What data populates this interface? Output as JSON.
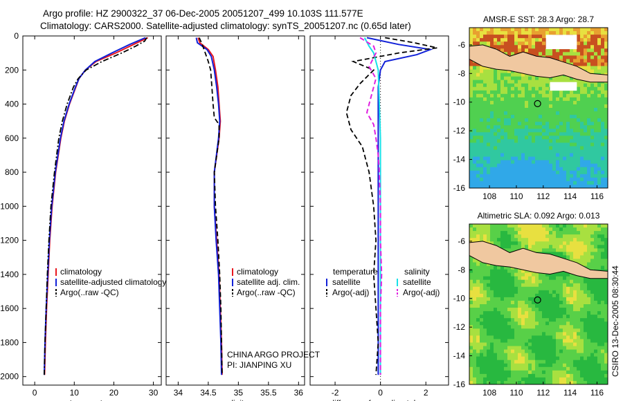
{
  "header": {
    "title1": "Argo profile: HZ 2900322_37 06-Dec-2005 20051207_499 10.103S 111.577E",
    "title2": "Climatology: CARS2000. Satellite-adjusted climatology: synTS_20051207.nc (0.65d later)"
  },
  "footer_vertical": "CSIRO 13-Dec-2005 08:30:44",
  "colors": {
    "red": "#e8161e",
    "blue": "#1020d8",
    "black": "#000000",
    "cyan": "#18e0e8",
    "magenta": "#e020e0"
  },
  "chart_data": [
    {
      "type": "line",
      "xlabel": "temperature",
      "ylim": [
        0,
        2050
      ],
      "xlim": [
        -3,
        32
      ],
      "yticks": [
        0,
        200,
        400,
        600,
        800,
        1000,
        1200,
        1400,
        1600,
        1800,
        2000
      ],
      "xticks": [
        0,
        10,
        20,
        30
      ],
      "legend": [
        "climatology",
        "satellite-adjusted climatology",
        "Argo(..raw -QC)"
      ],
      "series": [
        {
          "name": "climatology",
          "color": "red",
          "dash": "solid",
          "depth": [
            10,
            50,
            100,
            150,
            200,
            250,
            300,
            400,
            500,
            600,
            800,
            1000,
            1200,
            1400,
            1600,
            1800,
            1990
          ],
          "values": [
            28.6,
            25.0,
            20.5,
            15.5,
            12.8,
            11.2,
            10.4,
            8.8,
            7.5,
            6.6,
            5.3,
            4.4,
            3.8,
            3.4,
            3.0,
            2.7,
            2.5
          ]
        },
        {
          "name": "satellite-adjusted climatology",
          "color": "blue",
          "dash": "solid",
          "depth": [
            10,
            50,
            100,
            150,
            200,
            250,
            300,
            400,
            500,
            600,
            800,
            1000,
            1200,
            1400,
            1600,
            1800,
            1990
          ],
          "values": [
            28.0,
            24.0,
            19.5,
            15.2,
            12.8,
            11.2,
            10.3,
            8.7,
            7.4,
            6.5,
            5.2,
            4.3,
            3.7,
            3.3,
            2.9,
            2.6,
            2.4
          ]
        },
        {
          "name": "Argo(..raw -QC)",
          "color": "black",
          "dash": "dashdot",
          "depth": [
            10,
            30,
            60,
            100,
            150,
            200,
            250,
            300,
            400,
            500,
            600,
            800,
            1000,
            1200,
            1400,
            1600,
            1800,
            1990
          ],
          "values": [
            28.3,
            27.8,
            25.5,
            22.0,
            17.0,
            13.0,
            11.0,
            9.8,
            8.2,
            7.0,
            6.1,
            5.0,
            4.1,
            3.6,
            3.2,
            2.9,
            2.6,
            2.4
          ]
        }
      ]
    },
    {
      "type": "line",
      "xlabel": "salinity",
      "ylim": [
        0,
        2050
      ],
      "xlim": [
        33.8,
        36.1
      ],
      "xticks": [
        34,
        34.5,
        35,
        35.5,
        36
      ],
      "legend": [
        "climatology",
        "satellite adj. clim.",
        "Argo(..raw -QC)"
      ],
      "annotation": [
        "CHINA ARGO PROJECT",
        "PI: JIANPING XU"
      ],
      "series": [
        {
          "name": "climatology",
          "color": "red",
          "dash": "solid",
          "depth": [
            10,
            40,
            80,
            120,
            200,
            300,
            400,
            500,
            600,
            800,
            1000,
            1200,
            1400,
            1600,
            1800,
            1990
          ],
          "values": [
            34.33,
            34.36,
            34.5,
            34.58,
            34.62,
            34.66,
            34.68,
            34.7,
            34.68,
            34.6,
            34.6,
            34.64,
            34.68,
            34.7,
            34.72,
            34.73
          ]
        },
        {
          "name": "satellite adj. clim.",
          "color": "blue",
          "dash": "solid",
          "depth": [
            10,
            40,
            80,
            120,
            200,
            300,
            400,
            500,
            600,
            800,
            1000,
            1200,
            1400,
            1600,
            1800,
            1990
          ],
          "values": [
            34.3,
            34.32,
            34.48,
            34.55,
            34.6,
            34.64,
            34.67,
            34.69,
            34.67,
            34.6,
            34.6,
            34.63,
            34.67,
            34.69,
            34.71,
            34.72
          ]
        },
        {
          "name": "Argo(..raw -QC)",
          "color": "black",
          "dash": "dashed",
          "depth": [
            10,
            50,
            100,
            150,
            200,
            300,
            400,
            480,
            520,
            600,
            800,
            1000,
            1200,
            1400,
            1600,
            1800,
            1990
          ],
          "values": [
            34.35,
            34.4,
            34.45,
            34.5,
            34.54,
            34.56,
            34.58,
            34.6,
            34.68,
            34.68,
            34.6,
            34.62,
            34.66,
            34.69,
            34.71,
            34.72,
            34.73
          ]
        }
      ]
    },
    {
      "type": "line",
      "xlabel": "difference from climatology",
      "ylim": [
        0,
        2050
      ],
      "xlim": [
        -3.1,
        3.0
      ],
      "xticks": [
        -2,
        0,
        2
      ],
      "legend_left_title": "temperature",
      "legend_left": [
        "satellite",
        "Argo(-adj)"
      ],
      "legend_right_title": "salinity",
      "legend_right": [
        "satellite",
        "Argo(-adj)"
      ],
      "series": [
        {
          "name": "temperature satellite",
          "color": "blue",
          "dash": "solid",
          "depth": [
            10,
            50,
            80,
            110,
            150,
            200,
            300,
            400,
            600,
            800,
            1000,
            1200,
            1400,
            1600,
            1800,
            1990
          ],
          "values": [
            -0.6,
            0.8,
            2.2,
            1.6,
            0.2,
            0.0,
            -0.1,
            -0.1,
            -0.1,
            -0.1,
            -0.1,
            -0.1,
            -0.1,
            -0.1,
            -0.1,
            -0.1
          ]
        },
        {
          "name": "temperature Argo(-adj)",
          "color": "black",
          "dash": "dashed",
          "depth": [
            10,
            40,
            70,
            100,
            150,
            200,
            280,
            350,
            450,
            550,
            650,
            800,
            1000,
            1200,
            1400,
            1600,
            1800,
            1990
          ],
          "values": [
            0.2,
            1.5,
            2.5,
            0.8,
            -1.2,
            -0.3,
            -0.9,
            -1.3,
            -1.5,
            -1.3,
            -0.8,
            -0.5,
            -0.3,
            -0.2,
            -0.3,
            -0.2,
            -0.1,
            -0.2
          ]
        },
        {
          "name": "salinity satellite",
          "color": "cyan",
          "dash": "solid",
          "depth": [
            10,
            60,
            100,
            200,
            400,
            600,
            800,
            1000,
            1200,
            1400,
            1600,
            1800,
            1990
          ],
          "values": [
            -0.7,
            -0.5,
            -0.3,
            -0.1,
            -0.05,
            0.0,
            0.0,
            0.0,
            0.0,
            0.0,
            0.0,
            0.0,
            0.0
          ]
        },
        {
          "name": "salinity Argo(-adj)",
          "color": "magenta",
          "dash": "dashed",
          "depth": [
            10,
            60,
            100,
            180,
            250,
            350,
            450,
            520,
            600,
            700,
            800,
            1000,
            1200,
            1400,
            1600,
            1990
          ],
          "values": [
            -0.9,
            -0.3,
            -0.2,
            -0.5,
            -0.2,
            -0.4,
            -0.6,
            -0.3,
            -0.2,
            -0.1,
            -0.05,
            0.0,
            0.0,
            0.05,
            0.0,
            0.0
          ]
        }
      ]
    },
    {
      "type": "heatmap",
      "title": "AMSR-E SST: 28.3 Argo: 28.7",
      "xlim": [
        106.5,
        116.8
      ],
      "ylim": [
        -16,
        -4.8
      ],
      "xticks": [
        108,
        110,
        112,
        114,
        116
      ],
      "yticks": [
        -6,
        -8,
        -10,
        -12,
        -14,
        -16
      ],
      "float_position": {
        "lon": 111.577,
        "lat": -10.103
      }
    },
    {
      "type": "heatmap",
      "title": "Altimetric SLA: 0.092 Argo: 0.013",
      "xlim": [
        106.5,
        116.8
      ],
      "ylim": [
        -16,
        -4.8
      ],
      "xticks": [
        108,
        110,
        112,
        114,
        116
      ],
      "yticks": [
        -6,
        -8,
        -10,
        -12,
        -14,
        -16
      ],
      "float_position": {
        "lon": 111.577,
        "lat": -10.103
      }
    }
  ]
}
